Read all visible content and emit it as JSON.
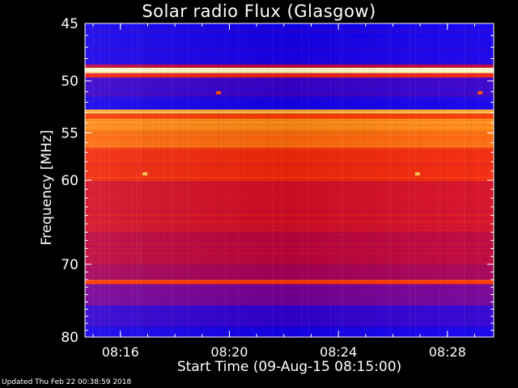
{
  "footer": {
    "updated": "Updated Thu Feb 22 00:38:59 2018"
  },
  "chart_data": {
    "type": "heatmap",
    "title": "Solar radio Flux (Glasgow)",
    "xlabel": "Start Time (09-Aug-15 08:15:00)",
    "ylabel": "Frequency [MHz]",
    "x_start": "08:15:00",
    "x_end": "08:30:00",
    "xlim_minutes_after_start": [
      0,
      15
    ],
    "x_ticks": [
      {
        "label": "08:16",
        "minute": 1.3
      },
      {
        "label": "08:20",
        "minute": 5.3
      },
      {
        "label": "08:24",
        "minute": 9.3
      },
      {
        "label": "08:28",
        "minute": 13.3
      }
    ],
    "y_ticks": [
      {
        "label": "45",
        "value": 45
      },
      {
        "label": "50",
        "value": 50
      },
      {
        "label": "55",
        "value": 55
      },
      {
        "label": "60",
        "value": 60
      },
      {
        "label": "70",
        "value": 70
      },
      {
        "label": "80",
        "value": 80
      }
    ],
    "ylim": [
      45,
      80
    ],
    "y_axis_inverted": true,
    "colormap": [
      "#0000ff",
      "#3c00c8",
      "#780096",
      "#b40046",
      "#e61414",
      "#ff3c00",
      "#ff8c14",
      "#ffd25a",
      "#ffffdc"
    ],
    "frequency_bands": [
      {
        "from": 45.0,
        "to": 45.3,
        "level": 0.0
      },
      {
        "from": 45.3,
        "to": 48.5,
        "level": 0.05
      },
      {
        "from": 48.5,
        "to": 48.8,
        "level": 0.4
      },
      {
        "from": 48.8,
        "to": 49.3,
        "level": 0.98
      },
      {
        "from": 49.3,
        "to": 49.7,
        "level": 0.55
      },
      {
        "from": 49.7,
        "to": 51.5,
        "level": 0.12
      },
      {
        "from": 51.5,
        "to": 52.7,
        "level": 0.04
      },
      {
        "from": 52.7,
        "to": 53.1,
        "level": 0.82
      },
      {
        "from": 53.1,
        "to": 53.6,
        "level": 0.62
      },
      {
        "from": 53.6,
        "to": 55.0,
        "level": 0.74
      },
      {
        "from": 55.0,
        "to": 56.5,
        "level": 0.7
      },
      {
        "from": 56.5,
        "to": 60.0,
        "level": 0.56
      },
      {
        "from": 60.0,
        "to": 66.0,
        "level": 0.46
      },
      {
        "from": 66.0,
        "to": 70.0,
        "level": 0.4
      },
      {
        "from": 70.0,
        "to": 72.0,
        "level": 0.34
      },
      {
        "from": 72.0,
        "to": 72.6,
        "level": 0.6
      },
      {
        "from": 72.6,
        "to": 75.5,
        "level": 0.24
      },
      {
        "from": 75.5,
        "to": 78.5,
        "level": 0.1
      },
      {
        "from": 78.5,
        "to": 80.0,
        "level": 0.04
      }
    ],
    "bright_spots": [
      {
        "minute": 2.2,
        "freq": 59.3,
        "level": 0.85
      },
      {
        "minute": 12.2,
        "freq": 59.3,
        "level": 0.85
      },
      {
        "minute": 4.9,
        "freq": 51.1,
        "level": 0.65
      },
      {
        "minute": 14.5,
        "freq": 51.1,
        "level": 0.65
      }
    ]
  }
}
